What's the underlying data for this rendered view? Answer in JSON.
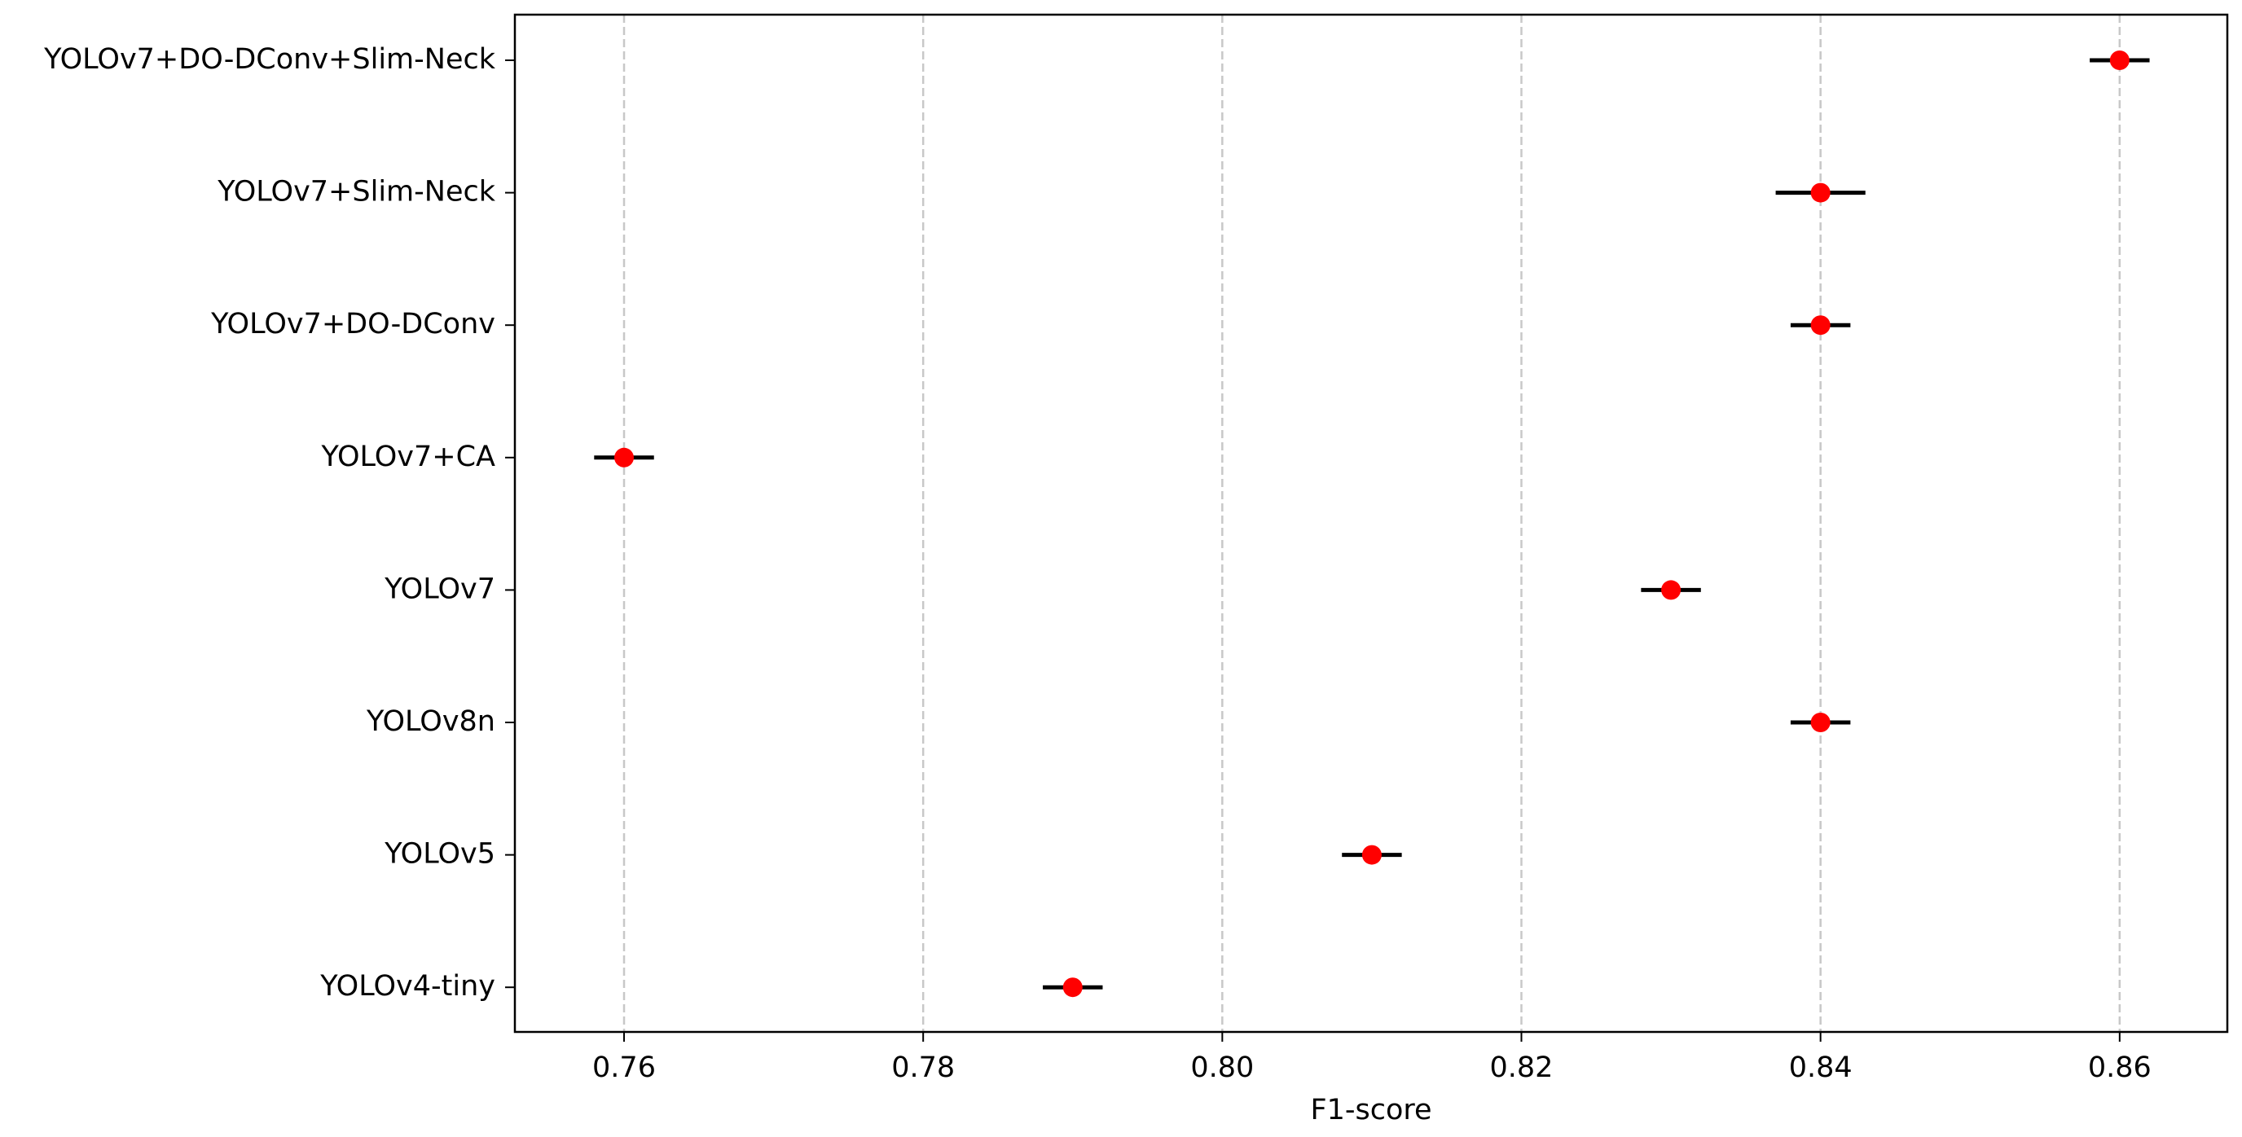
{
  "chart_data": {
    "type": "errorbar",
    "x_label": "F1-score",
    "categories": [
      "YOLOv7+DO-DConv+Slim-Neck",
      "YOLOv7+Slim-Neck",
      "YOLOv7+DO-DConv",
      "YOLOv7+CA",
      "YOLOv7",
      "YOLOv8n",
      "YOLOv5",
      "YOLOv4-tiny"
    ],
    "values": [
      0.86,
      0.84,
      0.84,
      0.76,
      0.83,
      0.84,
      0.81,
      0.79
    ],
    "errors": [
      0.002,
      0.003,
      0.002,
      0.002,
      0.002,
      0.002,
      0.002,
      0.002
    ],
    "color": "#ff0000",
    "error_color": "#000000",
    "xlim": [
      0.7527,
      0.8672
    ],
    "xticks": [
      {
        "value": 0.76,
        "label": "0.76"
      },
      {
        "value": 0.78,
        "label": "0.78"
      },
      {
        "value": 0.8,
        "label": "0.80"
      },
      {
        "value": 0.82,
        "label": "0.82"
      },
      {
        "value": 0.84,
        "label": "0.84"
      },
      {
        "value": 0.86,
        "label": "0.86"
      }
    ],
    "grid": true
  }
}
